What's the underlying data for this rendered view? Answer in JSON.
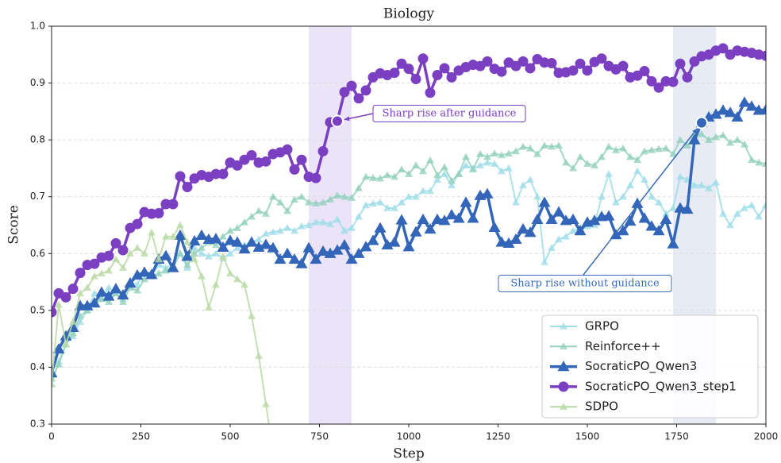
{
  "chart_data": {
    "type": "line",
    "title": "Biology",
    "xlabel": "Step",
    "ylabel": "Score",
    "x": [
      0,
      20,
      40,
      60,
      80,
      100,
      120,
      140,
      160,
      180,
      200,
      220,
      240,
      260,
      280,
      300,
      320,
      340,
      360,
      380,
      400,
      420,
      440,
      460,
      480,
      500,
      520,
      540,
      560,
      580,
      600,
      620,
      640,
      660,
      680,
      700,
      720,
      740,
      760,
      780,
      800,
      820,
      840,
      860,
      880,
      900,
      920,
      940,
      960,
      980,
      1000,
      1020,
      1040,
      1060,
      1080,
      1100,
      1120,
      1140,
      1160,
      1180,
      1200,
      1220,
      1240,
      1260,
      1280,
      1300,
      1320,
      1340,
      1360,
      1380,
      1400,
      1420,
      1440,
      1460,
      1480,
      1500,
      1520,
      1540,
      1560,
      1580,
      1600,
      1620,
      1640,
      1660,
      1680,
      1700,
      1720,
      1740,
      1760,
      1780,
      1800,
      1820,
      1840,
      1860,
      1880,
      1900,
      1920,
      1940,
      1960,
      1980,
      2000
    ],
    "xlim": [
      0,
      2000
    ],
    "xticks": [
      0,
      250,
      500,
      750,
      1000,
      1250,
      1500,
      1750,
      2000
    ],
    "ylim": [
      0.3,
      1.0
    ],
    "yticks": [
      {
        "value": 0.3,
        "label": "0.3"
      },
      {
        "value": 0.4,
        "label": "0.4"
      },
      {
        "value": 0.5,
        "label": "0.5"
      },
      {
        "value": 0.6,
        "label": "0.6"
      },
      {
        "value": 0.7,
        "label": "0.7"
      },
      {
        "value": 0.8,
        "label": "0.8"
      },
      {
        "value": 0.9,
        "label": "0.9"
      },
      {
        "value": 1.0,
        "label": "1.0"
      }
    ],
    "grid": true,
    "legend": "lower right",
    "highlights": [
      {
        "range": [
          720,
          840
        ],
        "color": "#e4daf4"
      },
      {
        "range": [
          1740,
          1860
        ],
        "color": "#dde4f0"
      }
    ],
    "annotations": [
      {
        "text": "Sharp rise after guidance",
        "x": 800,
        "y": 0.833,
        "color": "#7b3fc2"
      },
      {
        "text": "Sharp rise without guidance",
        "x": 1820,
        "y": 0.83,
        "color": "#3a6bb5"
      }
    ],
    "series": [
      {
        "name": "GRPO",
        "color": "#9fdde9",
        "marker": "triangle",
        "width": 2,
        "values": [
          0.37,
          0.41,
          0.44,
          0.455,
          0.48,
          0.5,
          0.53,
          0.52,
          0.54,
          0.53,
          0.52,
          0.55,
          0.545,
          0.57,
          0.56,
          0.58,
          0.575,
          0.58,
          0.6,
          0.575,
          0.61,
          0.6,
          0.595,
          0.6,
          0.592,
          0.6,
          0.61,
          0.615,
          0.62,
          0.625,
          0.635,
          0.638,
          0.64,
          0.645,
          0.64,
          0.648,
          0.65,
          0.655,
          0.655,
          0.652,
          0.66,
          0.64,
          0.645,
          0.665,
          0.685,
          0.688,
          0.69,
          0.68,
          0.68,
          0.69,
          0.7,
          0.7,
          0.71,
          0.71,
          0.73,
          0.74,
          0.72,
          0.74,
          0.755,
          0.75,
          0.755,
          0.76,
          0.758,
          0.745,
          0.75,
          0.69,
          0.72,
          0.73,
          0.7,
          0.585,
          0.61,
          0.625,
          0.63,
          0.64,
          0.645,
          0.648,
          0.65,
          0.7,
          0.74,
          0.69,
          0.7,
          0.72,
          0.745,
          0.73,
          0.7,
          0.69,
          0.67,
          0.68,
          0.735,
          0.73,
          0.72,
          0.72,
          0.715,
          0.725,
          0.67,
          0.65,
          0.67,
          0.68,
          0.685,
          0.665,
          0.685
        ]
      },
      {
        "name": "Reinforce++",
        "color": "#93d1bd",
        "marker": "triangle",
        "width": 2,
        "values": [
          0.38,
          0.405,
          0.44,
          0.46,
          0.49,
          0.5,
          0.51,
          0.52,
          0.515,
          0.53,
          0.515,
          0.54,
          0.535,
          0.555,
          0.56,
          0.565,
          0.57,
          0.575,
          0.6,
          0.58,
          0.6,
          0.61,
          0.62,
          0.615,
          0.63,
          0.64,
          0.645,
          0.655,
          0.665,
          0.675,
          0.67,
          0.7,
          0.69,
          0.675,
          0.695,
          0.7,
          0.69,
          0.688,
          0.69,
          0.695,
          0.702,
          0.7,
          0.698,
          0.715,
          0.735,
          0.733,
          0.732,
          0.738,
          0.735,
          0.748,
          0.74,
          0.755,
          0.745,
          0.764,
          0.738,
          0.752,
          0.728,
          0.74,
          0.77,
          0.748,
          0.775,
          0.77,
          0.776,
          0.773,
          0.776,
          0.78,
          0.788,
          0.785,
          0.775,
          0.79,
          0.788,
          0.79,
          0.76,
          0.75,
          0.77,
          0.758,
          0.755,
          0.77,
          0.788,
          0.782,
          0.785,
          0.77,
          0.765,
          0.78,
          0.782,
          0.784,
          0.785,
          0.775,
          0.8,
          0.79,
          0.808,
          0.81,
          0.8,
          0.805,
          0.808,
          0.795,
          0.8,
          0.792,
          0.765,
          0.76,
          0.758
        ]
      },
      {
        "name": "SocraticPO_Qwen3",
        "color": "#3366b8",
        "marker": "triangle-big",
        "width": 3.5,
        "values": [
          0.39,
          0.432,
          0.455,
          0.47,
          0.508,
          0.508,
          0.513,
          0.532,
          0.525,
          0.538,
          0.527,
          0.548,
          0.562,
          0.567,
          0.563,
          0.59,
          0.596,
          0.575,
          0.632,
          0.595,
          0.622,
          0.632,
          0.625,
          0.626,
          0.611,
          0.623,
          0.62,
          0.608,
          0.62,
          0.611,
          0.616,
          0.61,
          0.59,
          0.6,
          0.59,
          0.582,
          0.61,
          0.59,
          0.604,
          0.6,
          0.606,
          0.615,
          0.59,
          0.6,
          0.612,
          0.623,
          0.645,
          0.615,
          0.62,
          0.659,
          0.612,
          0.638,
          0.66,
          0.643,
          0.66,
          0.658,
          0.668,
          0.662,
          0.69,
          0.662,
          0.702,
          0.705,
          0.646,
          0.62,
          0.618,
          0.625,
          0.643,
          0.637,
          0.66,
          0.69,
          0.66,
          0.673,
          0.658,
          0.66,
          0.64,
          0.655,
          0.658,
          0.665,
          0.666,
          0.633,
          0.64,
          0.657,
          0.688,
          0.662,
          0.648,
          0.64,
          0.66,
          0.617,
          0.68,
          0.678,
          0.8,
          0.83,
          0.84,
          0.845,
          0.852,
          0.848,
          0.84,
          0.866,
          0.859,
          0.852,
          0.853
        ]
      },
      {
        "name": "SocraticPO_Qwen3_step1",
        "color": "#7b3fc2",
        "marker": "circle",
        "width": 3.5,
        "values": [
          0.497,
          0.53,
          0.523,
          0.538,
          0.566,
          0.58,
          0.582,
          0.593,
          0.596,
          0.618,
          0.606,
          0.645,
          0.652,
          0.673,
          0.67,
          0.671,
          0.687,
          0.687,
          0.736,
          0.717,
          0.732,
          0.738,
          0.735,
          0.74,
          0.74,
          0.76,
          0.755,
          0.765,
          0.773,
          0.76,
          0.762,
          0.775,
          0.778,
          0.783,
          0.748,
          0.765,
          0.735,
          0.733,
          0.78,
          0.831,
          0.833,
          0.884,
          0.895,
          0.873,
          0.887,
          0.91,
          0.917,
          0.914,
          0.918,
          0.934,
          0.925,
          0.907,
          0.943,
          0.883,
          0.914,
          0.926,
          0.91,
          0.922,
          0.928,
          0.932,
          0.93,
          0.938,
          0.925,
          0.92,
          0.936,
          0.93,
          0.938,
          0.926,
          0.942,
          0.936,
          0.935,
          0.918,
          0.919,
          0.922,
          0.934,
          0.922,
          0.937,
          0.943,
          0.93,
          0.924,
          0.93,
          0.91,
          0.913,
          0.921,
          0.903,
          0.892,
          0.903,
          0.902,
          0.934,
          0.91,
          0.938,
          0.947,
          0.95,
          0.957,
          0.961,
          0.95,
          0.957,
          0.955,
          0.953,
          0.95,
          0.948
        ]
      },
      {
        "name": "SDPO",
        "color": "#bad9a5",
        "marker": "triangle",
        "width": 2,
        "values": [
          0.37,
          0.51,
          0.44,
          0.48,
          0.53,
          0.54,
          0.56,
          0.565,
          0.57,
          0.59,
          0.575,
          0.6,
          0.61,
          0.6,
          0.637,
          0.59,
          0.63,
          0.63,
          0.65,
          0.62,
          0.59,
          0.56,
          0.505,
          0.545,
          0.595,
          0.565,
          0.555,
          0.545,
          0.49,
          0.42,
          0.335,
          0.25,
          null,
          null,
          null,
          null,
          null,
          null,
          null,
          null,
          null,
          null,
          null,
          null,
          null,
          null,
          null,
          null,
          null,
          null,
          null,
          null,
          null,
          null,
          null,
          null,
          null,
          null,
          null,
          null,
          null,
          null,
          null,
          null,
          null,
          null,
          null,
          null,
          null,
          null,
          null,
          null,
          null,
          null,
          null,
          null,
          null,
          null,
          null,
          null,
          null,
          null,
          null,
          null,
          null,
          null,
          null,
          null,
          null,
          null,
          null,
          null,
          null,
          null,
          null,
          null,
          null,
          null,
          null,
          null,
          null
        ]
      }
    ]
  }
}
